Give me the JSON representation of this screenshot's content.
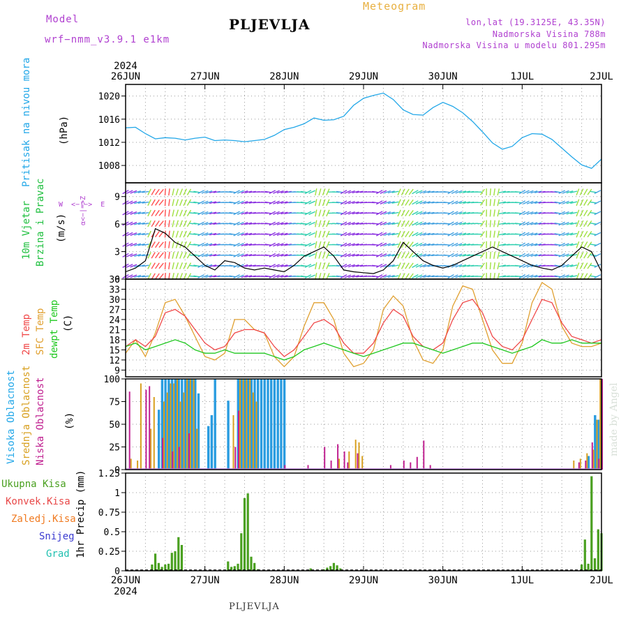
{
  "header": {
    "model_label": "Model",
    "model_name": "wrf−nmm_v3.9.1  e1km",
    "title": "PLJEVLJA",
    "meteogram": "Meteogram",
    "lonlat": "lon,lat (19.3125E, 43.35N)",
    "altitude": "Nadmorska Visina 788m",
    "model_altitude": "Nadmorska Visina u modelu 801.295m",
    "bottom_name": "PLJEVLJA",
    "made_by": "made by Angel"
  },
  "colors": {
    "pressure": "#22a7e8",
    "temp2m": "#f04848",
    "sfc": "#e0a030",
    "dewpt": "#20c820",
    "high_cloud": "#2a9ce0",
    "mid_cloud": "#d8a020",
    "low_cloud": "#c02090",
    "precip_total": "#4aa020",
    "precip_conv": "#e84848",
    "precip_zaledj": "#f07a20",
    "snow": "#3a3ad0",
    "grad": "#20c0b0"
  },
  "axes": {
    "year_top": "2024",
    "year_bottom": "2024",
    "date_labels": [
      "26JUN",
      "27JUN",
      "28JUN",
      "29JUN",
      "30JUN",
      "1JUL",
      "2JUL"
    ]
  },
  "panel_labels": {
    "pressure": "Pritisak na nivou mora",
    "pressure_unit": "(hPa)",
    "wind1": "10m Vjetar",
    "wind2": "Brzina i Pravac",
    "wind_unit": "(m/s)",
    "compass_ns": "α<−|−>Z",
    "compass_we": "W  <−|−>  E",
    "temp2m": "2m Temp",
    "sfc": "SFC Temp",
    "dewpt": "dewpt Temp",
    "temp_unit": "(C)",
    "visoka": "Visoka Oblacnost",
    "srednja": "Srednja Oblacnost",
    "niska": "Niska  Oblacnost",
    "cloud_unit": "(%)",
    "precip_unit": "1hr Precip (mm)",
    "ukupna": "Ukupna Kisa",
    "konvek": "Konvek.Kisa",
    "zaledj": "Zaledj.Kisa",
    "snijeg": "Snijeg",
    "grad": "Grad"
  },
  "chart_data": [
    {
      "type": "line",
      "name": "pressure",
      "x_unit": "hours since 26JUN 00UTC",
      "ylim": [
        1005,
        1022
      ],
      "yticks": [
        1008,
        1012,
        1016,
        1020
      ],
      "ytick_labels": [
        "1008",
        "1012",
        "1016",
        "1020"
      ],
      "grid": true,
      "series": [
        {
          "x": [
            0,
            3,
            6,
            9,
            12,
            15,
            18,
            21,
            24,
            27,
            30,
            33,
            36,
            39,
            42,
            45,
            48,
            51,
            54,
            57,
            60,
            63,
            66,
            69,
            72,
            75,
            78,
            81,
            84,
            87,
            90,
            93,
            96,
            99,
            102,
            105,
            108,
            111,
            114,
            117,
            120,
            123,
            126,
            129,
            132,
            135,
            138,
            141,
            144
          ],
          "values": [
            1014.5,
            1014.6,
            1013.5,
            1012.6,
            1012.8,
            1012.7,
            1012.4,
            1012.7,
            1012.9,
            1012.3,
            1012.4,
            1012.3,
            1012.1,
            1012.3,
            1012.5,
            1013.2,
            1014.2,
            1014.6,
            1015.2,
            1016.2,
            1015.8,
            1015.9,
            1016.5,
            1018.4,
            1019.6,
            1020.1,
            1020.5,
            1019.4,
            1017.6,
            1016.8,
            1016.7,
            1018.0,
            1018.9,
            1018.2,
            1017.1,
            1015.6,
            1013.8,
            1011.9,
            1010.8,
            1011.3,
            1012.8,
            1013.5,
            1013.4,
            1012.5,
            1011.0,
            1009.5,
            1008.1,
            1007.5,
            1009.1
          ]
        }
      ]
    },
    {
      "type": "line",
      "name": "wind",
      "ylim": [
        0,
        10.5
      ],
      "yticks": [
        0,
        3,
        6,
        9
      ],
      "ytick_labels": [
        "0",
        "3",
        "6",
        "9"
      ],
      "grid": true,
      "series": [
        {
          "name": "speed",
          "x": [
            0,
            3,
            6,
            9,
            12,
            15,
            18,
            21,
            24,
            27,
            30,
            33,
            36,
            39,
            42,
            45,
            48,
            51,
            54,
            57,
            60,
            63,
            66,
            69,
            72,
            75,
            78,
            81,
            84,
            87,
            90,
            93,
            96,
            99,
            102,
            105,
            108,
            111,
            114,
            117,
            120,
            123,
            126,
            129,
            132,
            135,
            138,
            141,
            144
          ],
          "values": [
            0.8,
            1.2,
            2.0,
            5.5,
            5.0,
            4.0,
            3.5,
            2.5,
            1.5,
            1.0,
            2.0,
            1.8,
            1.2,
            1.0,
            1.2,
            1.0,
            0.8,
            1.5,
            2.5,
            3.0,
            3.5,
            2.5,
            1.0,
            0.8,
            0.7,
            0.6,
            1.0,
            2.0,
            4.0,
            3.0,
            2.0,
            1.5,
            1.2,
            1.5,
            2.0,
            2.5,
            3.0,
            3.5,
            3.0,
            2.5,
            2.0,
            1.5,
            1.2,
            1.0,
            1.5,
            2.5,
            3.5,
            3.0,
            0.8
          ]
        }
      ]
    },
    {
      "type": "line",
      "name": "temperature",
      "ylim": [
        7,
        36
      ],
      "yticks": [
        9,
        12,
        15,
        18,
        21,
        24,
        27,
        30,
        33,
        36
      ],
      "ytick_labels": [
        "9",
        "12",
        "15",
        "18",
        "21",
        "24",
        "27",
        "30",
        "33",
        "36"
      ],
      "grid": true,
      "series": [
        {
          "name": "2m Temp",
          "x": [
            0,
            3,
            6,
            9,
            12,
            15,
            18,
            21,
            24,
            27,
            30,
            33,
            36,
            39,
            42,
            45,
            48,
            51,
            54,
            57,
            60,
            63,
            66,
            69,
            72,
            75,
            78,
            81,
            84,
            87,
            90,
            93,
            96,
            99,
            102,
            105,
            108,
            111,
            114,
            117,
            120,
            123,
            126,
            129,
            132,
            135,
            138,
            141,
            144
          ],
          "values": [
            16,
            18,
            16,
            19,
            26,
            27,
            25,
            21,
            17,
            15,
            16,
            20,
            21,
            21,
            20,
            16,
            13,
            15,
            19,
            23,
            24,
            22,
            17,
            14,
            14,
            17,
            23,
            27,
            25,
            19,
            16,
            15,
            17,
            24,
            29,
            30,
            26,
            19,
            16,
            15,
            18,
            24,
            30,
            29,
            23,
            19,
            18,
            17,
            18
          ]
        },
        {
          "name": "SFC Temp",
          "x": [
            0,
            3,
            6,
            9,
            12,
            15,
            18,
            21,
            24,
            27,
            30,
            33,
            36,
            39,
            42,
            45,
            48,
            51,
            54,
            57,
            60,
            63,
            66,
            69,
            72,
            75,
            78,
            81,
            84,
            87,
            90,
            93,
            96,
            99,
            102,
            105,
            108,
            111,
            114,
            117,
            120,
            123,
            126,
            129,
            132,
            135,
            138,
            141,
            144
          ],
          "values": [
            14,
            18,
            13,
            20,
            29,
            30,
            25,
            19,
            13,
            12,
            14,
            24,
            24,
            21,
            20,
            13,
            10,
            13,
            22,
            29,
            29,
            24,
            14,
            10,
            11,
            15,
            27,
            31,
            28,
            18,
            12,
            11,
            15,
            28,
            34,
            33,
            24,
            15,
            11,
            11,
            17,
            29,
            35,
            33,
            22,
            17,
            16,
            16,
            17
          ]
        },
        {
          "name": "dewpt Temp",
          "x": [
            0,
            3,
            6,
            9,
            12,
            15,
            18,
            21,
            24,
            27,
            30,
            33,
            36,
            39,
            42,
            45,
            48,
            51,
            54,
            57,
            60,
            63,
            66,
            69,
            72,
            75,
            78,
            81,
            84,
            87,
            90,
            93,
            96,
            99,
            102,
            105,
            108,
            111,
            114,
            117,
            120,
            123,
            126,
            129,
            132,
            135,
            138,
            141,
            144
          ],
          "values": [
            16,
            17,
            15,
            16,
            17,
            18,
            17,
            15,
            14,
            14,
            15,
            14,
            14,
            14,
            14,
            13,
            12,
            13,
            15,
            16,
            17,
            16,
            15,
            14,
            13,
            14,
            15,
            16,
            17,
            17,
            16,
            15,
            14,
            15,
            16,
            17,
            17,
            16,
            15,
            14,
            15,
            16,
            18,
            17,
            17,
            18,
            17,
            17,
            17
          ]
        }
      ]
    },
    {
      "type": "bar",
      "name": "cloudiness",
      "ylim": [
        0,
        100
      ],
      "yticks": [
        0,
        25,
        50,
        75,
        100
      ],
      "ytick_labels": [
        "0",
        "25",
        "50",
        "75",
        "100"
      ],
      "grid": true,
      "series": [
        {
          "name": "Visoka Oblacnost",
          "x": [
            10,
            11,
            12,
            13,
            14,
            15,
            16,
            17,
            18,
            19,
            20,
            21,
            22,
            25,
            26,
            27,
            31,
            34,
            35,
            36,
            37,
            38,
            39,
            40,
            41,
            42,
            43,
            44,
            45,
            46,
            47,
            48,
            140,
            142,
            143,
            144
          ],
          "values": [
            66,
            100,
            100,
            100,
            100,
            100,
            100,
            100,
            100,
            100,
            100,
            100,
            84,
            48,
            60,
            100,
            76,
            100,
            100,
            100,
            100,
            100,
            100,
            100,
            100,
            100,
            100,
            100,
            100,
            100,
            100,
            100,
            15,
            60,
            55,
            100
          ]
        },
        {
          "name": "Srednja Oblacnost",
          "x": [
            2,
            4,
            5,
            8,
            9,
            12,
            13,
            14,
            15,
            16,
            17,
            18,
            19,
            20,
            21,
            22,
            33,
            35,
            36,
            37,
            38,
            39,
            40,
            65,
            68,
            70,
            71,
            72,
            136,
            138,
            140,
            142,
            143,
            144
          ],
          "values": [
            12,
            10,
            95,
            45,
            80,
            75,
            85,
            95,
            95,
            100,
            75,
            85,
            100,
            100,
            100,
            45,
            60,
            100,
            100,
            100,
            100,
            85,
            75,
            12,
            20,
            33,
            30,
            15,
            10,
            12,
            18,
            22,
            55,
            100
          ]
        },
        {
          "name": "Niska Oblacnost",
          "x": [
            1,
            6,
            7,
            11,
            14,
            16,
            19,
            33,
            34,
            48,
            55,
            60,
            62,
            64,
            66,
            67,
            70,
            80,
            84,
            86,
            88,
            90,
            92,
            137,
            139,
            141,
            143,
            144
          ],
          "values": [
            86,
            88,
            92,
            35,
            20,
            25,
            40,
            25,
            65,
            5,
            5,
            25,
            10,
            28,
            20,
            8,
            18,
            5,
            10,
            8,
            14,
            32,
            5,
            8,
            10,
            30,
            12,
            100
          ]
        }
      ]
    },
    {
      "type": "bar",
      "name": "precipitation",
      "ylim": [
        0,
        1.25
      ],
      "yticks": [
        0,
        0.25,
        0.5,
        0.75,
        1,
        1.25
      ],
      "ytick_labels": [
        "0",
        "0.25",
        "0.5",
        "0.75",
        "1",
        "1.25"
      ],
      "grid": true,
      "series": [
        {
          "name": "Ukupna Kisa",
          "x": [
            8,
            9,
            10,
            11,
            12,
            13,
            14,
            15,
            16,
            17,
            31,
            32,
            33,
            34,
            35,
            36,
            37,
            38,
            39,
            40,
            56,
            60,
            61,
            62,
            63,
            64,
            65,
            138,
            139,
            140,
            141,
            142,
            143,
            144
          ],
          "values": [
            0.08,
            0.22,
            0.1,
            0.05,
            0.08,
            0.09,
            0.23,
            0.25,
            0.43,
            0.33,
            0.12,
            0.05,
            0.06,
            0.09,
            0.48,
            0.93,
            0.99,
            0.18,
            0.1,
            0.02,
            0.03,
            0.02,
            0.04,
            0.06,
            0.1,
            0.07,
            0.03,
            0.08,
            0.4,
            0.09,
            1.21,
            0.16,
            0.53,
            0.48
          ]
        }
      ]
    }
  ]
}
